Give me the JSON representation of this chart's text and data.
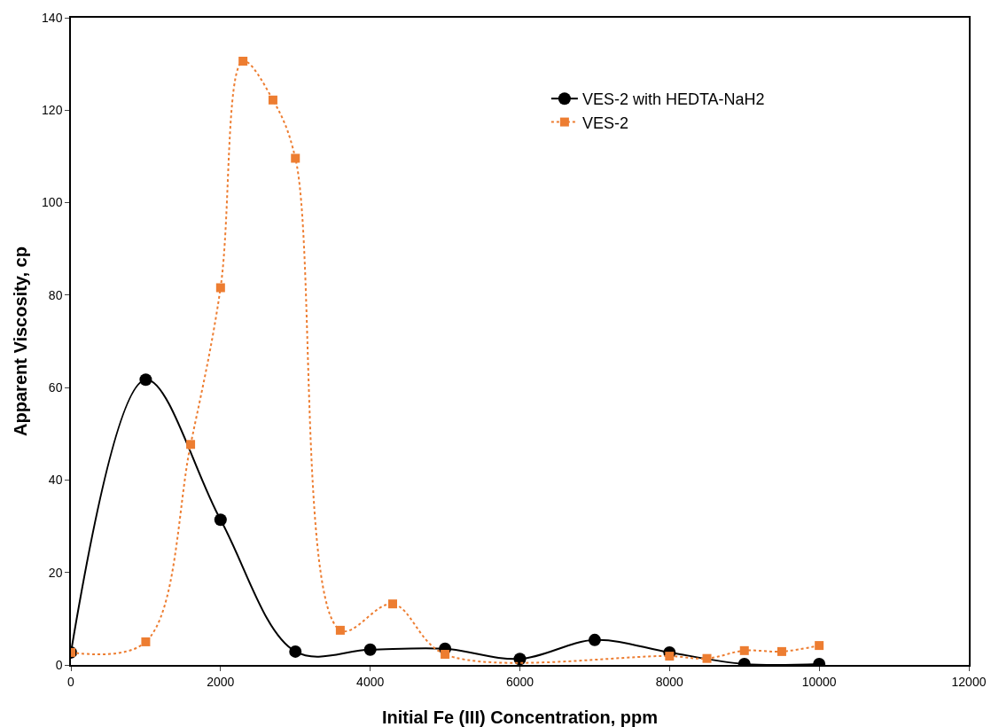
{
  "chart_data": {
    "type": "line",
    "xlabel": "Initial Fe (III) Concentration, ppm",
    "ylabel": "Apparent Viscosity, cp",
    "xlim": [
      0,
      12000
    ],
    "xticks": [
      0,
      2000,
      4000,
      6000,
      8000,
      10000,
      12000
    ],
    "ylim": [
      0,
      140
    ],
    "yticks": [
      0,
      20,
      40,
      60,
      80,
      100,
      120,
      140
    ],
    "grid": false,
    "legend": "top right",
    "series": [
      {
        "name": "VES-2 with HEDTA-NaH2",
        "color": "#000000",
        "marker": "circle",
        "line_style": "solid",
        "x": [
          0,
          1000,
          2000,
          3000,
          4000,
          5000,
          6000,
          7000,
          8000,
          9000,
          10000
        ],
        "values": [
          2.7,
          61.7,
          31.4,
          2.9,
          3.3,
          3.5,
          1.3,
          5.4,
          2.7,
          0.2,
          0.2
        ]
      },
      {
        "name": "VES-2",
        "color": "#ed7d31",
        "marker": "square",
        "line_style": "dotted",
        "x": [
          0,
          1000,
          1600,
          2000,
          2300,
          2700,
          3000,
          3600,
          4300,
          5000,
          8000,
          8500,
          9000,
          9500,
          10000
        ],
        "values": [
          2.7,
          5.0,
          47.7,
          81.6,
          130.6,
          122.2,
          109.6,
          7.5,
          13.2,
          2.3,
          1.9,
          1.4,
          3.1,
          2.9,
          4.2
        ]
      }
    ]
  }
}
